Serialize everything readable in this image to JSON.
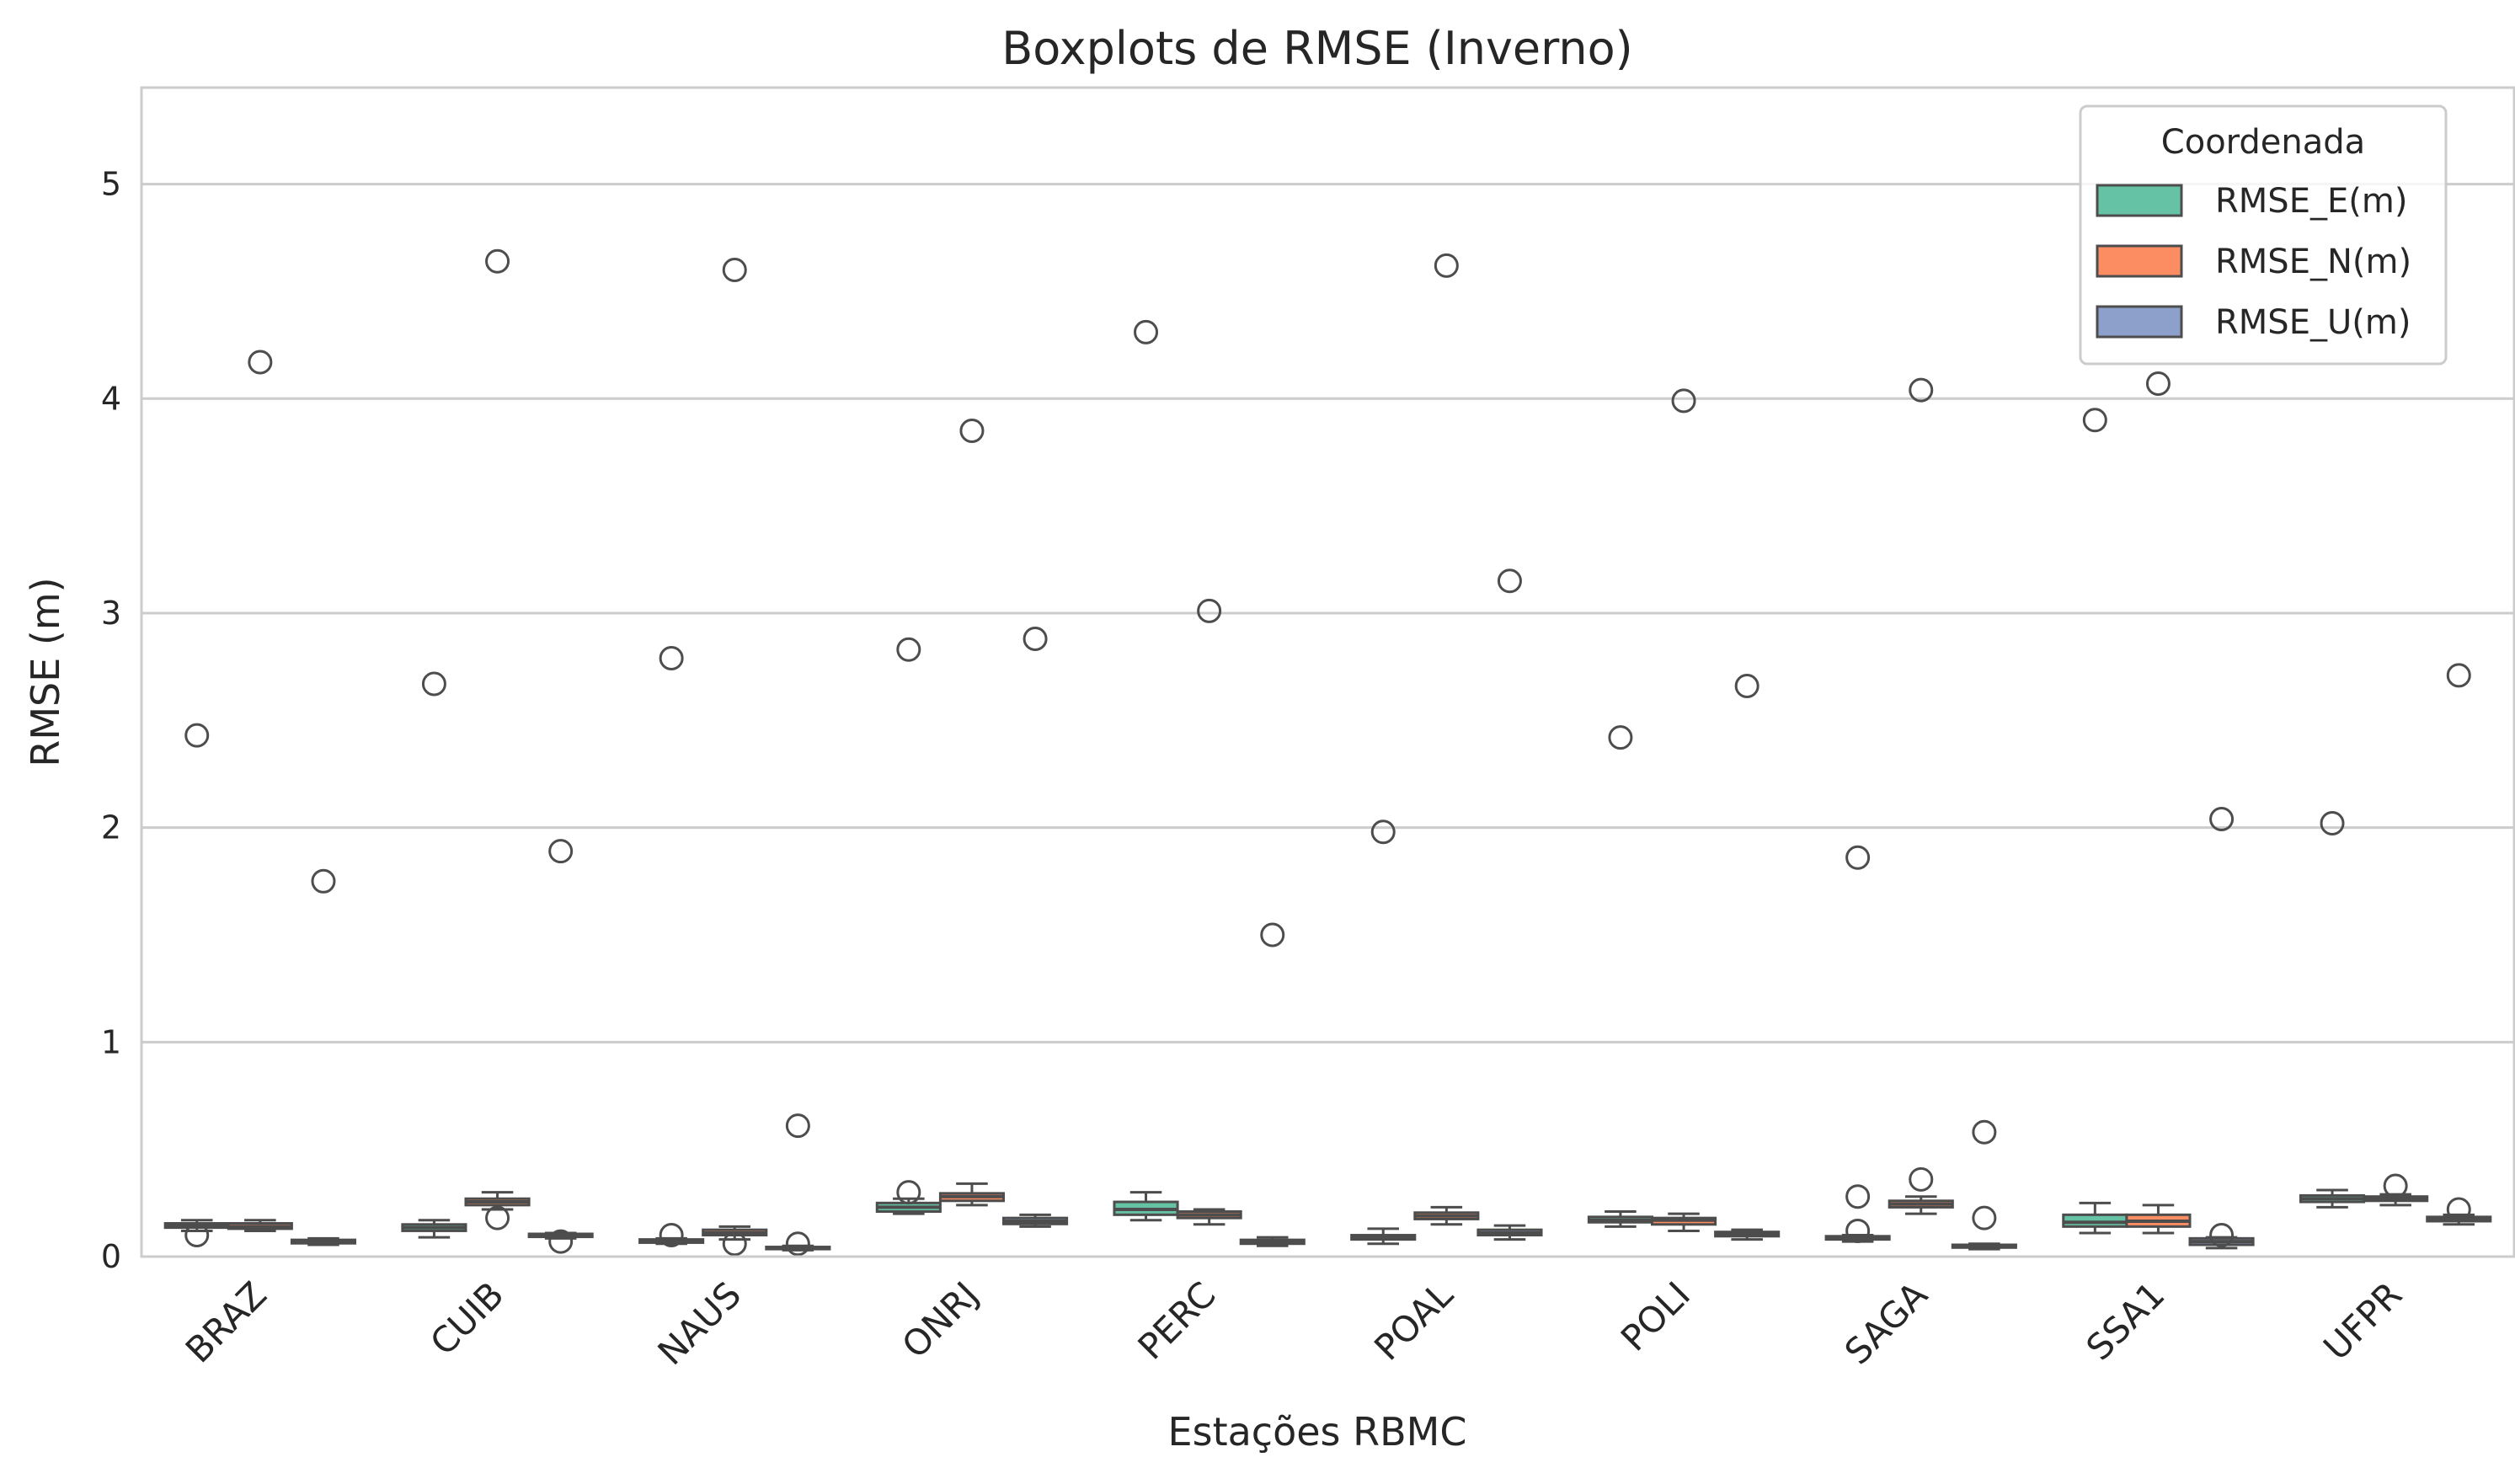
{
  "chart_data": {
    "type": "boxplot",
    "title": "Boxplots de RMSE (Inverno)",
    "xlabel": "Estações RBMC",
    "ylabel": "RMSE (m)",
    "ylim": [
      0,
      5.45
    ],
    "yticks": [
      0,
      1,
      2,
      3,
      4,
      5
    ],
    "grid": "horizontal",
    "categories": [
      "BRAZ",
      "CUIB",
      "NAUS",
      "ONRJ",
      "PERC",
      "POAL",
      "POLI",
      "SAGA",
      "SSA1",
      "UFPR"
    ],
    "legend": {
      "title": "Coordenada",
      "position": "top-right"
    },
    "series": [
      {
        "name": "RMSE_E(m)",
        "color": "#66c2a5",
        "boxes": [
          {
            "whislo": 0.12,
            "q1": 0.135,
            "med": 0.145,
            "q3": 0.155,
            "whishi": 0.17,
            "fliers": [
              0.1,
              2.43
            ]
          },
          {
            "whislo": 0.09,
            "q1": 0.12,
            "med": 0.135,
            "q3": 0.15,
            "whishi": 0.17,
            "fliers": [
              2.67
            ]
          },
          {
            "whislo": 0.06,
            "q1": 0.065,
            "med": 0.07,
            "q3": 0.08,
            "whishi": 0.085,
            "fliers": [
              0.1,
              2.79
            ]
          },
          {
            "whislo": 0.2,
            "q1": 0.21,
            "med": 0.23,
            "q3": 0.25,
            "whishi": 0.27,
            "fliers": [
              0.3,
              2.83
            ]
          },
          {
            "whislo": 0.17,
            "q1": 0.195,
            "med": 0.22,
            "q3": 0.255,
            "whishi": 0.3,
            "fliers": [
              4.31
            ]
          },
          {
            "whislo": 0.06,
            "q1": 0.08,
            "med": 0.09,
            "q3": 0.1,
            "whishi": 0.13,
            "fliers": [
              1.98
            ]
          },
          {
            "whislo": 0.14,
            "q1": 0.16,
            "med": 0.17,
            "q3": 0.185,
            "whishi": 0.21,
            "fliers": [
              2.42
            ]
          },
          {
            "whislo": 0.07,
            "q1": 0.08,
            "med": 0.085,
            "q3": 0.095,
            "whishi": 0.1,
            "fliers": [
              0.12,
              0.28,
              1.86
            ]
          },
          {
            "whislo": 0.11,
            "q1": 0.14,
            "med": 0.16,
            "q3": 0.195,
            "whishi": 0.25,
            "fliers": [
              3.9
            ]
          },
          {
            "whislo": 0.23,
            "q1": 0.255,
            "med": 0.27,
            "q3": 0.285,
            "whishi": 0.31,
            "fliers": [
              2.02
            ]
          }
        ]
      },
      {
        "name": "RMSE_N(m)",
        "color": "#fc8d62",
        "boxes": [
          {
            "whislo": 0.12,
            "q1": 0.13,
            "med": 0.14,
            "q3": 0.155,
            "whishi": 0.17,
            "fliers": [
              4.17
            ]
          },
          {
            "whislo": 0.22,
            "q1": 0.24,
            "med": 0.255,
            "q3": 0.27,
            "whishi": 0.3,
            "fliers": [
              0.18,
              4.64
            ]
          },
          {
            "whislo": 0.08,
            "q1": 0.1,
            "med": 0.11,
            "q3": 0.125,
            "whishi": 0.14,
            "fliers": [
              0.06,
              4.6
            ]
          },
          {
            "whislo": 0.24,
            "q1": 0.26,
            "med": 0.28,
            "q3": 0.295,
            "whishi": 0.34,
            "fliers": [
              3.85
            ]
          },
          {
            "whislo": 0.15,
            "q1": 0.18,
            "med": 0.195,
            "q3": 0.21,
            "whishi": 0.22,
            "fliers": [
              3.01
            ]
          },
          {
            "whislo": 0.15,
            "q1": 0.175,
            "med": 0.19,
            "q3": 0.205,
            "whishi": 0.23,
            "fliers": [
              4.62
            ]
          },
          {
            "whislo": 0.12,
            "q1": 0.15,
            "med": 0.17,
            "q3": 0.18,
            "whishi": 0.2,
            "fliers": [
              3.99
            ]
          },
          {
            "whislo": 0.2,
            "q1": 0.23,
            "med": 0.245,
            "q3": 0.26,
            "whishi": 0.28,
            "fliers": [
              0.36,
              4.04
            ]
          },
          {
            "whislo": 0.11,
            "q1": 0.14,
            "med": 0.165,
            "q3": 0.195,
            "whishi": 0.24,
            "fliers": [
              4.07
            ]
          },
          {
            "whislo": 0.24,
            "q1": 0.26,
            "med": 0.27,
            "q3": 0.28,
            "whishi": 0.29,
            "fliers": [
              0.33
            ]
          }
        ]
      },
      {
        "name": "RMSE_U(m)",
        "color": "#8da0cb",
        "boxes": [
          {
            "whislo": 0.055,
            "q1": 0.062,
            "med": 0.07,
            "q3": 0.078,
            "whishi": 0.085,
            "fliers": [
              1.75
            ]
          },
          {
            "whislo": 0.085,
            "q1": 0.092,
            "med": 0.1,
            "q3": 0.106,
            "whishi": 0.11,
            "fliers": [
              0.07,
              1.89
            ]
          },
          {
            "whislo": 0.03,
            "q1": 0.035,
            "med": 0.04,
            "q3": 0.045,
            "whishi": 0.05,
            "fliers": [
              0.06,
              0.61
            ]
          },
          {
            "whislo": 0.14,
            "q1": 0.152,
            "med": 0.165,
            "q3": 0.18,
            "whishi": 0.195,
            "fliers": [
              2.88
            ]
          },
          {
            "whislo": 0.05,
            "q1": 0.06,
            "med": 0.07,
            "q3": 0.078,
            "whishi": 0.09,
            "fliers": [
              1.5
            ]
          },
          {
            "whislo": 0.08,
            "q1": 0.1,
            "med": 0.11,
            "q3": 0.125,
            "whishi": 0.145,
            "fliers": [
              3.15
            ]
          },
          {
            "whislo": 0.08,
            "q1": 0.095,
            "med": 0.105,
            "q3": 0.115,
            "whishi": 0.125,
            "fliers": [
              2.66
            ]
          },
          {
            "whislo": 0.035,
            "q1": 0.042,
            "med": 0.05,
            "q3": 0.055,
            "whishi": 0.06,
            "fliers": [
              0.18,
              0.58
            ]
          },
          {
            "whislo": 0.04,
            "q1": 0.055,
            "med": 0.07,
            "q3": 0.085,
            "whishi": 0.09,
            "fliers": [
              0.1,
              2.04
            ]
          },
          {
            "whislo": 0.15,
            "q1": 0.165,
            "med": 0.175,
            "q3": 0.185,
            "whishi": 0.195,
            "fliers": [
              0.22,
              2.71
            ]
          }
        ]
      }
    ]
  }
}
